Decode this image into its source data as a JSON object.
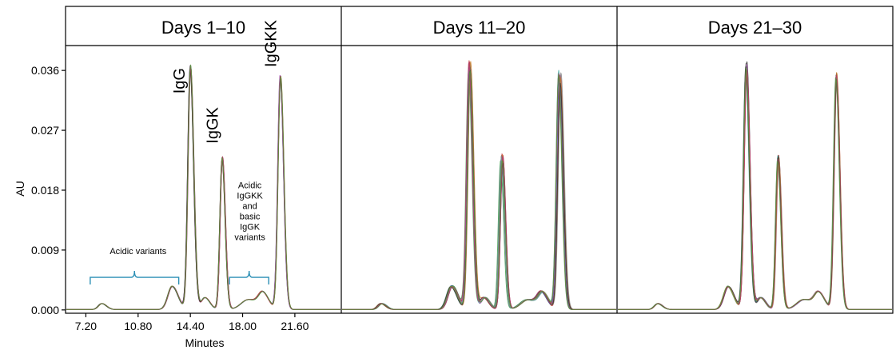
{
  "chart_data": {
    "type": "line",
    "panels": [
      {
        "title": "Days 1–10",
        "shift": 0,
        "jitter": 0.05,
        "ampJitter": 0.02
      },
      {
        "title": "Days 11–20",
        "shift": 0.25,
        "jitter": 0.18,
        "ampJitter": 0.06
      },
      {
        "title": "Days 21–30",
        "shift": 0.3,
        "jitter": 0.1,
        "ampJitter": 0.05
      }
    ],
    "xlabel": "Minutes",
    "ylabel": "AU",
    "xlim": [
      5.8,
      24.8
    ],
    "ylim": [
      -0.0005,
      0.0395
    ],
    "x_ticks": [
      "7.20",
      "10.80",
      "14.40",
      "18.00",
      "21.60"
    ],
    "x_tick_values": [
      7.2,
      10.8,
      14.4,
      18.0,
      21.6
    ],
    "y_ticks": [
      "0.000",
      "0.009",
      "0.018",
      "0.027",
      "0.036"
    ],
    "y_tick_values": [
      0,
      0.009,
      0.018,
      0.027,
      0.036
    ],
    "peaks": [
      {
        "center": 8.3,
        "height": 0.0009,
        "width": 0.28
      },
      {
        "center": 13.15,
        "height": 0.0035,
        "width": 0.35
      },
      {
        "center": 14.4,
        "height": 0.0365,
        "width": 0.2
      },
      {
        "center": 15.4,
        "height": 0.0018,
        "width": 0.3
      },
      {
        "center": 16.6,
        "height": 0.0228,
        "width": 0.18
      },
      {
        "center": 18.4,
        "height": 0.0015,
        "width": 0.6
      },
      {
        "center": 19.4,
        "height": 0.0022,
        "width": 0.35
      },
      {
        "center": 20.6,
        "height": 0.035,
        "width": 0.2
      }
    ],
    "peak_labels": [
      {
        "text": "IgG",
        "x": 14.0,
        "y": 0.0325
      },
      {
        "text": "IgGK",
        "x": 16.3,
        "y": 0.025
      },
      {
        "text": "IgGKK",
        "x": 20.3,
        "y": 0.0365
      }
    ],
    "annotations": [
      {
        "lines": [
          "Acidic variants"
        ],
        "x": 10.8,
        "y": 0.0084,
        "brace": [
          7.5,
          13.6
        ],
        "brace_y": 0.0049
      },
      {
        "lines": [
          "Acidic",
          "IgGKK",
          "and",
          "basic",
          "IgGK",
          "variants"
        ],
        "x": 18.5,
        "y": 0.0183,
        "brace": [
          17.1,
          19.8
        ],
        "brace_y": 0.0049
      }
    ],
    "series_colors": [
      "#1a1a1a",
      "#c43b3b",
      "#3a9a4a",
      "#2f5fb3",
      "#4fb0a8",
      "#a855b5",
      "#8a8a8a",
      "#c77a2c",
      "#333333",
      "#b03a6a",
      "#5a8f3a"
    ],
    "n_traces": 11,
    "grid": false
  }
}
